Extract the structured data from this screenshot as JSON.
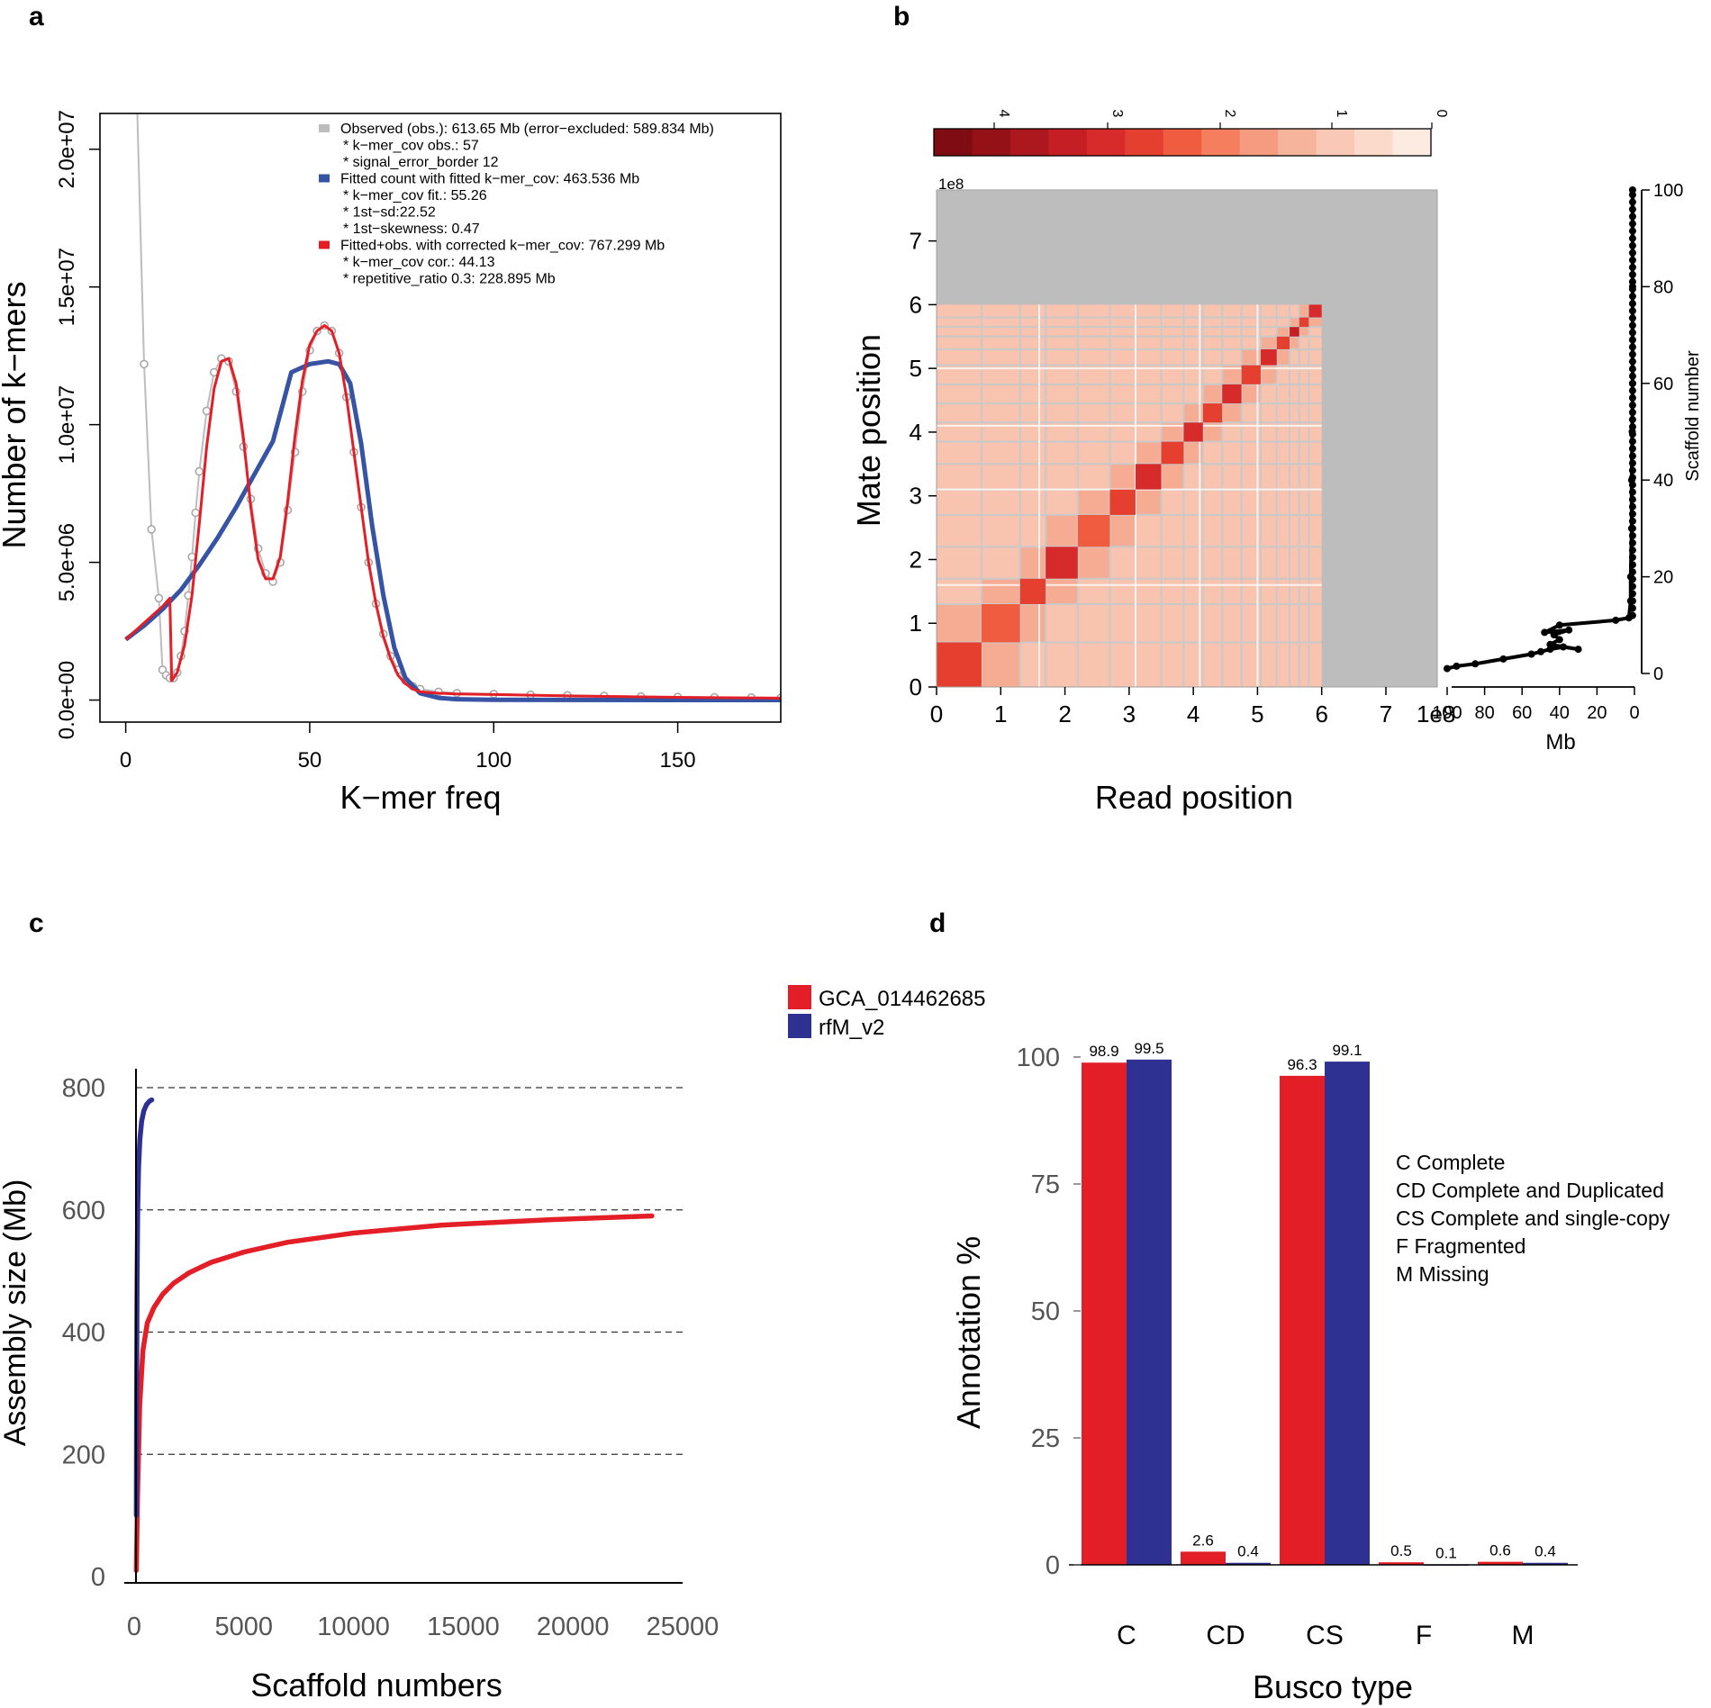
{
  "panels": {
    "a": {
      "letter": "a"
    },
    "b": {
      "letter": "b"
    },
    "c": {
      "letter": "c"
    },
    "d": {
      "letter": "d"
    }
  },
  "colors": {
    "red": "#E41E26",
    "blue": "#3653A4",
    "navy": "#2E3192",
    "grey": "#BDBDBD",
    "black": "#000000"
  },
  "chart_data": [
    {
      "id": "a",
      "type": "line",
      "xlabel": "K−mer freq",
      "ylabel": "Number of k−mers",
      "xlim": [
        -7,
        178
      ],
      "ylim": [
        -800000,
        21300000
      ],
      "xticks": [
        0,
        50,
        100,
        150
      ],
      "yticks": [
        0,
        5000000,
        10000000,
        15000000,
        20000000
      ],
      "ytick_labels": [
        "0.0e+00",
        "5.0e+06",
        "1.0e+07",
        "1.5e+07",
        "2.0e+07"
      ],
      "legend": [
        {
          "color": "#BDBDBD",
          "lines": [
            "Observed (obs.): 613.65 Mb (error−excluded: 589.834 Mb)",
            "* k−mer_cov obs.: 57",
            "* signal_error_border 12"
          ]
        },
        {
          "color": "#3653A4",
          "lines": [
            "Fitted count with fitted k−mer_cov: 463.536 Mb",
            "* k−mer_cov fit.: 55.26",
            "* 1st−sd:22.52",
            "* 1st−skewness: 0.47"
          ]
        },
        {
          "color": "#E41E26",
          "lines": [
            "Fitted+obs. with corrected k−mer_cov: 767.299 Mb",
            "* k−mer_cov cor.: 44.13",
            "* repetitive_ratio 0.3: 228.895 Mb"
          ]
        }
      ],
      "series": [
        {
          "name": "Observed",
          "x": [
            3,
            5,
            7,
            9,
            10,
            11,
            12,
            13,
            14,
            15,
            16,
            17,
            18,
            19,
            20,
            22,
            24,
            26,
            28,
            30,
            32,
            34,
            36,
            38,
            40,
            42,
            44,
            46,
            48,
            50,
            52,
            54,
            56,
            58,
            60,
            62,
            64,
            66,
            68,
            70,
            72,
            74,
            76,
            78,
            80,
            85,
            90,
            100,
            110,
            120,
            130,
            140,
            150,
            160,
            170,
            178
          ],
          "y": [
            22000000,
            12200000,
            6200000,
            3700000,
            1100000,
            900000,
            800000,
            800000,
            1000000,
            1600000,
            2500000,
            3800000,
            5200000,
            6800000,
            8300000,
            10500000,
            11900000,
            12400000,
            12300000,
            11200000,
            9200000,
            7300000,
            5500000,
            4600000,
            4300000,
            5000000,
            6900000,
            9000000,
            11200000,
            12700000,
            13400000,
            13600000,
            13400000,
            12600000,
            11000000,
            9000000,
            7000000,
            5000000,
            3500000,
            2400000,
            1600000,
            1100000,
            700000,
            500000,
            400000,
            300000,
            250000,
            220000,
            190000,
            170000,
            150000,
            130000,
            110000,
            100000,
            90000,
            80000
          ]
        },
        {
          "name": "Fitted",
          "x": [
            0,
            5,
            10,
            15,
            20,
            25,
            30,
            35,
            40,
            45,
            50,
            55,
            58,
            61,
            64,
            67,
            70,
            73,
            76,
            80,
            85,
            90,
            100,
            120,
            150,
            178
          ],
          "y": [
            2200000,
            2700000,
            3300000,
            4000000,
            4900000,
            5900000,
            7000000,
            8200000,
            9400000,
            11900000,
            12200000,
            12300000,
            12200000,
            11500000,
            9300000,
            6300000,
            3800000,
            1900000,
            800000,
            250000,
            80000,
            30000,
            10000,
            5000,
            2000,
            1000
          ]
        },
        {
          "name": "Corrected",
          "x": [
            0,
            5,
            10,
            12,
            12.5,
            14,
            16,
            18,
            20,
            22,
            24,
            26,
            28,
            30,
            32,
            34,
            36,
            38,
            40,
            42,
            44,
            46,
            48,
            50,
            52,
            54,
            56,
            58,
            60,
            62,
            64,
            66,
            68,
            70,
            72,
            74,
            76,
            78,
            80,
            85,
            90,
            100,
            120,
            150,
            178
          ],
          "y": [
            2200000,
            2800000,
            3400000,
            3700000,
            700000,
            1000000,
            2000000,
            3800000,
            6400000,
            9200000,
            11300000,
            12300000,
            12400000,
            11500000,
            9500000,
            7000000,
            5100000,
            4400000,
            4400000,
            5200000,
            7200000,
            9600000,
            11600000,
            12900000,
            13400000,
            13600000,
            13400000,
            12600000,
            11000000,
            9000000,
            7000000,
            5000000,
            3500000,
            2300000,
            1500000,
            900000,
            600000,
            400000,
            300000,
            250000,
            220000,
            200000,
            150000,
            100000,
            70000
          ]
        }
      ]
    },
    {
      "id": "b",
      "type": "heatmap",
      "xlabel": "Read position",
      "ylabel": "Mate position",
      "xlim": [
        0,
        780000000
      ],
      "ylim": [
        0,
        780000000
      ],
      "ticks": [
        0,
        1,
        2,
        3,
        4,
        5,
        6,
        7
      ],
      "axis_multiplier": "1e8",
      "colorbar": {
        "ticks": [
          "4",
          "3",
          "2",
          "1",
          "0"
        ],
        "colors": [
          "#7E0C12",
          "#951118",
          "#AD171E",
          "#C51F25",
          "#D72A2B",
          "#E5402F",
          "#EF5C40",
          "#F47E5E",
          "#F59C80",
          "#F7B49D",
          "#FAC8B6",
          "#FCDACB",
          "#FDEBE2"
        ]
      },
      "scaffold_boundaries": [
        0,
        70000000,
        130000000,
        170000000,
        220000000,
        270000000,
        310000000,
        350000000,
        385000000,
        415000000,
        445000000,
        475000000,
        505000000,
        530000000,
        550000000,
        565000000,
        580000000,
        600000000
      ],
      "side_plot": {
        "xlabel": "Mb",
        "ylabel": "Scaffold number",
        "xticks": [
          100,
          80,
          60,
          40,
          20,
          0
        ],
        "yticks": [
          0,
          20,
          40,
          60,
          80,
          100
        ],
        "x": [
          100,
          95,
          85,
          70,
          55,
          50,
          45,
          38,
          30,
          45,
          40,
          43,
          35,
          48,
          40,
          10,
          3,
          2,
          2,
          1.5,
          1.5,
          1.2,
          1,
          1,
          1
        ],
        "y": [
          1,
          1.5,
          2,
          3,
          4,
          4.5,
          5,
          5.5,
          5,
          6,
          7,
          8,
          9,
          8.5,
          10,
          11,
          11.5,
          15,
          20,
          30,
          40,
          50,
          60,
          80,
          100
        ]
      }
    },
    {
      "id": "c",
      "type": "line",
      "xlabel": "Scaffold numbers",
      "ylabel": "Assembly size (Mb)",
      "xlim": [
        -100,
        25000
      ],
      "ylim": [
        0,
        810
      ],
      "xticks": [
        0,
        5000,
        10000,
        15000,
        20000,
        25000
      ],
      "yticks": [
        0,
        200,
        400,
        600,
        800
      ],
      "hlines": [
        200,
        400,
        600,
        800
      ],
      "series": [
        {
          "name": "GCA_014462685",
          "color": "#E41E26",
          "x": [
            100,
            150,
            250,
            400,
            600,
            900,
            1300,
            1800,
            2500,
            3500,
            5000,
            7000,
            10000,
            14000,
            19000,
            23600
          ],
          "y": [
            10,
            130,
            280,
            370,
            415,
            440,
            462,
            480,
            497,
            514,
            531,
            547,
            562,
            575,
            584,
            590
          ]
        },
        {
          "name": "rfM_v2",
          "color": "#2E3192",
          "x": [
            100,
            110,
            130,
            160,
            200,
            260,
            340,
            440,
            560,
            700,
            800
          ],
          "y": [
            100,
            300,
            480,
            600,
            670,
            715,
            745,
            762,
            772,
            778,
            780
          ]
        }
      ]
    },
    {
      "id": "d",
      "type": "bar",
      "xlabel": "Busco type",
      "ylabel": "Annotation %",
      "ylim": [
        0,
        100
      ],
      "yticks": [
        0,
        25,
        50,
        75,
        100
      ],
      "categories": [
        "C",
        "CD",
        "CS",
        "F",
        "M"
      ],
      "series": [
        {
          "name": "GCA_014462685",
          "color": "#E41E26",
          "values": [
            98.9,
            2.6,
            96.3,
            0.5,
            0.6
          ],
          "labels": [
            "98.9",
            "2.6",
            "96.3",
            "0.5",
            "0.6"
          ]
        },
        {
          "name": "rfM_v2",
          "color": "#2E3192",
          "values": [
            99.5,
            0.4,
            99.1,
            0.1,
            0.4
          ],
          "labels": [
            "99.5",
            "0.4",
            "99.1",
            "0.1",
            "0.4"
          ]
        }
      ],
      "annotation_lines": [
        "C Complete",
        "CD Complete and Duplicated",
        "CS Complete and single-copy",
        "F Fragmented",
        "M Missing"
      ]
    }
  ]
}
